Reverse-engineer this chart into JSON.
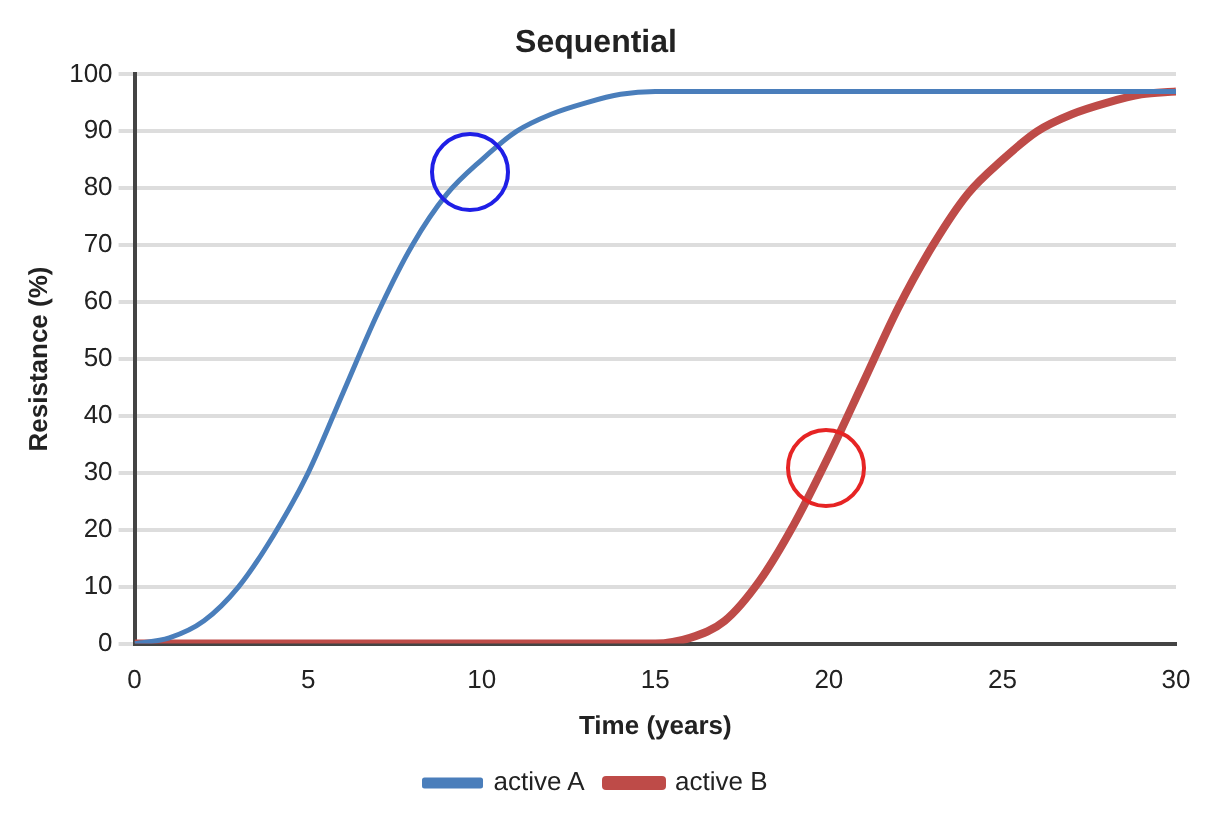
{
  "chart_data": {
    "type": "line",
    "title": "Sequential",
    "xlabel": "Time (years)",
    "ylabel": "Resistance (%)",
    "xlim": [
      0,
      30
    ],
    "xticks": [
      0,
      5,
      10,
      15,
      20,
      25,
      30
    ],
    "ylim": [
      0,
      100
    ],
    "yticks": [
      0,
      10,
      20,
      30,
      40,
      50,
      60,
      70,
      80,
      90,
      100
    ],
    "grid": "y",
    "legend": "bottom",
    "marker": "none",
    "line_style": "solid",
    "series": [
      {
        "name": "active A",
        "color": "#4a7ebb",
        "x": [
          0,
          1,
          2,
          3,
          4,
          5,
          6,
          7,
          8,
          9,
          10,
          11,
          12,
          13,
          14,
          15,
          30
        ],
        "values": [
          0,
          1,
          4,
          10,
          19,
          30,
          44,
          58,
          70,
          79,
          85,
          90,
          93,
          95,
          96.5,
          97,
          97
        ]
      },
      {
        "name": "active B",
        "color": "#be4b48",
        "x": [
          0,
          15,
          16,
          17,
          18,
          19,
          20,
          21,
          22,
          23,
          24,
          25,
          26,
          27,
          28,
          29,
          30
        ],
        "values": [
          0,
          0,
          1,
          4,
          11,
          21,
          33,
          46,
          59,
          70,
          79,
          85,
          90,
          93,
          95,
          96.5,
          97
        ]
      }
    ]
  }
}
